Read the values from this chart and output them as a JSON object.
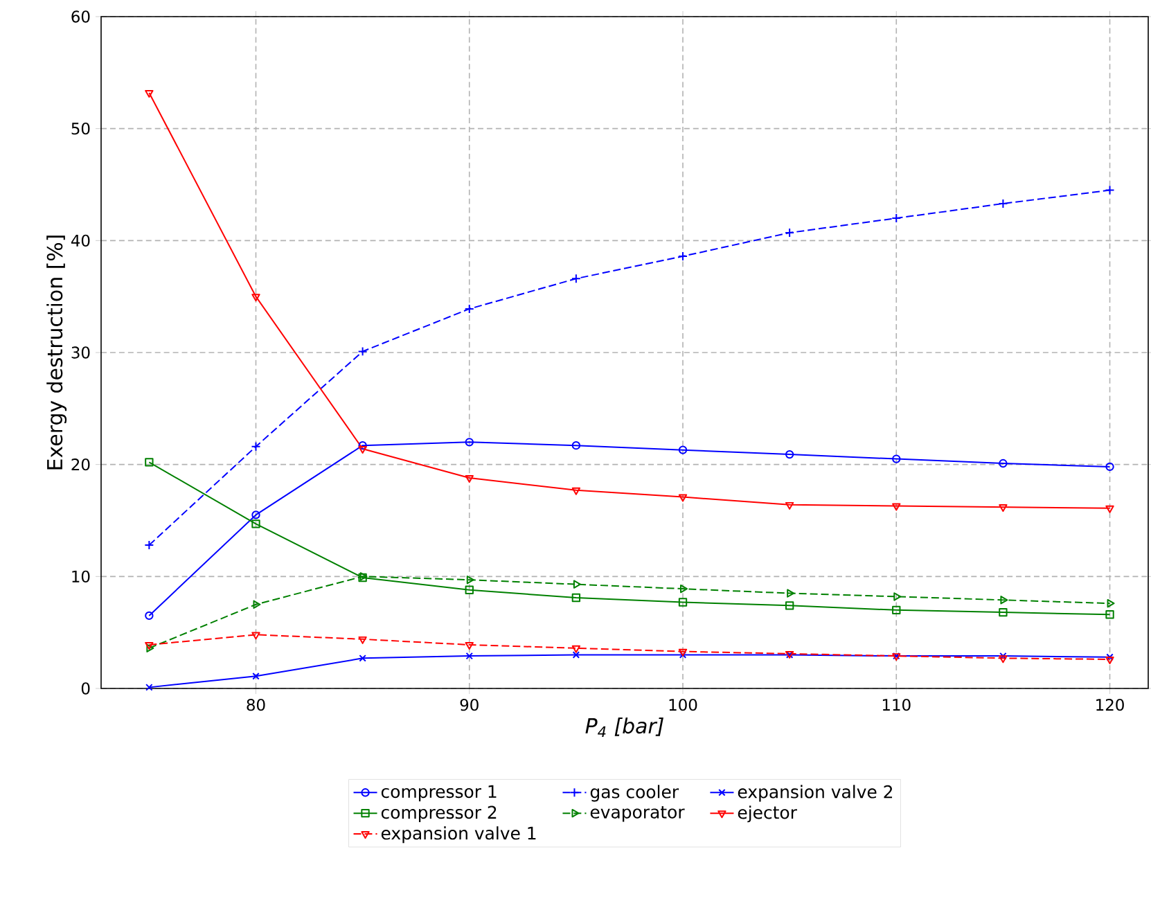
{
  "chart_data": {
    "type": "line",
    "xlabel": "P$_{4}$ [bar]",
    "ylabel": "Exergy destruction [%]",
    "x": [
      75,
      80,
      85,
      90,
      95,
      100,
      105,
      110,
      115,
      120
    ],
    "xlim": [
      72.75,
      121.8
    ],
    "ylim": [
      0,
      60
    ],
    "xticks": [
      80,
      90,
      100,
      110,
      120
    ],
    "yticks": [
      0,
      10,
      20,
      30,
      40,
      50,
      60
    ],
    "grid": true,
    "legend": "bottom",
    "series": [
      {
        "name": "compressor 1",
        "color": "#0000ff",
        "marker": "circle",
        "line_style": "solid",
        "values": [
          6.5,
          15.5,
          21.7,
          22.0,
          21.7,
          21.3,
          20.9,
          20.5,
          20.1,
          19.8
        ]
      },
      {
        "name": "compressor 2",
        "color": "#008000",
        "marker": "square",
        "line_style": "solid",
        "values": [
          20.2,
          14.7,
          9.9,
          8.8,
          8.1,
          7.7,
          7.4,
          7.0,
          6.8,
          6.6
        ]
      },
      {
        "name": "ejector",
        "color": "#ff0000",
        "marker": "triangle-down",
        "line_style": "solid",
        "values": [
          53.2,
          35.0,
          21.4,
          18.8,
          17.7,
          17.1,
          16.4,
          16.3,
          16.2,
          16.1
        ]
      },
      {
        "name": "gas cooler",
        "color": "#0000ff",
        "marker": "plus",
        "line_style": "dashed",
        "values": [
          12.8,
          21.6,
          30.1,
          33.9,
          36.6,
          38.6,
          40.7,
          42.0,
          43.3,
          44.5
        ]
      },
      {
        "name": "evaporator",
        "color": "#008000",
        "marker": "triangle-right",
        "line_style": "dashed",
        "values": [
          3.6,
          7.5,
          10.0,
          9.7,
          9.3,
          8.9,
          8.5,
          8.2,
          7.9,
          7.6
        ]
      },
      {
        "name": "expansion valve 1",
        "color": "#ff0000",
        "marker": "triangle-down",
        "line_style": "dashed",
        "values": [
          3.9,
          4.8,
          4.4,
          3.9,
          3.6,
          3.3,
          3.1,
          2.9,
          2.7,
          2.6
        ]
      },
      {
        "name": "expansion valve 2",
        "color": "#0000ff",
        "marker": "x",
        "line_style": "solid",
        "values": [
          0.1,
          1.1,
          2.7,
          2.9,
          3.0,
          3.0,
          3.0,
          2.9,
          2.9,
          2.8
        ]
      }
    ]
  }
}
